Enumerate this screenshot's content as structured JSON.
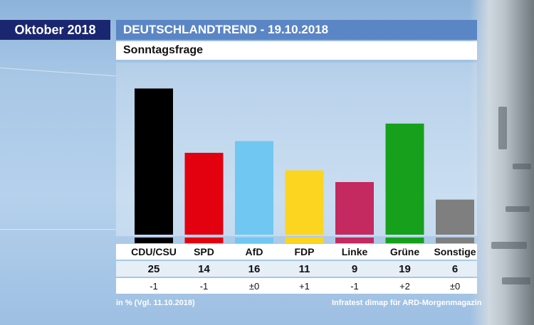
{
  "header": {
    "month": "Oktober 2018",
    "title": "DEUTSCHLANDTREND - 19.10.2018",
    "subtitle": "Sonntagsfrage"
  },
  "chart_data": {
    "type": "bar",
    "title": "Sonntagsfrage",
    "categories": [
      "CDU/CSU",
      "SPD",
      "AfD",
      "FDP",
      "Linke",
      "Grüne",
      "Sonstige"
    ],
    "values": [
      25,
      14,
      16,
      11,
      9,
      19,
      6
    ],
    "changes": [
      "-1",
      "-1",
      "±0",
      "+1",
      "-1",
      "+2",
      "±0"
    ],
    "colors": [
      "#000000",
      "#e3000f",
      "#6fc7f2",
      "#fcd520",
      "#c4295f",
      "#16a01b",
      "#7f7f7f"
    ],
    "ylim": [
      0,
      27
    ],
    "grid": false,
    "unit_note": "in % (Vgl. 11.10.2018)"
  },
  "footer": {
    "left": "in % (Vgl. 11.10.2018)",
    "right": "Infratest dimap für ARD-Morgenmagazin"
  },
  "colors": {
    "month_box": "#1a2670",
    "header_box": "#5b86c5"
  }
}
